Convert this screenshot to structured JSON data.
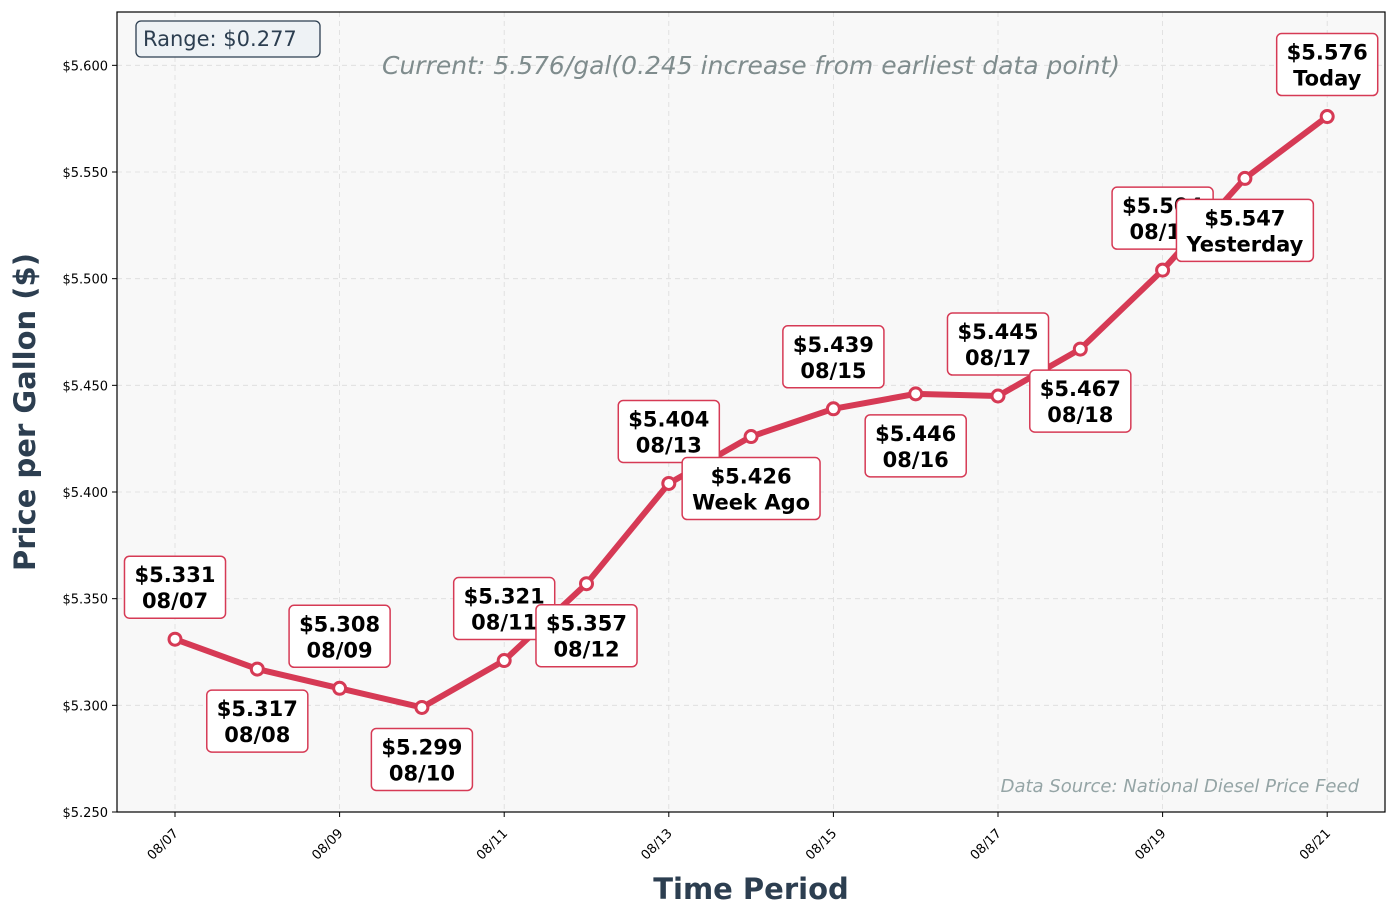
{
  "chart_data": {
    "type": "line",
    "xlabel": "Time Period",
    "ylabel": "Price per Gallon ($)",
    "subtitle": "Current: 5.576/gal(0.245 increase from earliest data point)",
    "range_label": "Range: $0.277",
    "source_label": "Data Source: National Diesel Price Feed",
    "ylim": [
      5.25,
      5.625
    ],
    "yticks": [
      "$5.250",
      "$5.300",
      "$5.350",
      "$5.400",
      "$5.450",
      "$5.500",
      "$5.550",
      "$5.600"
    ],
    "xticks": [
      "08/07",
      "08/09",
      "08/11",
      "08/13",
      "08/15",
      "08/17",
      "08/19",
      "08/21"
    ],
    "grid": true,
    "line_color": "#d63a55",
    "x": [
      "08/07",
      "08/08",
      "08/09",
      "08/10",
      "08/11",
      "08/12",
      "08/13",
      "08/14",
      "08/15",
      "08/16",
      "08/17",
      "08/18",
      "08/19",
      "08/20",
      "08/21"
    ],
    "values": [
      5.331,
      5.317,
      5.308,
      5.299,
      5.321,
      5.357,
      5.404,
      5.426,
      5.439,
      5.446,
      5.445,
      5.467,
      5.504,
      5.547,
      5.576
    ],
    "annotations": [
      {
        "price": "$5.331",
        "label": "08/07",
        "position": "above"
      },
      {
        "price": "$5.317",
        "label": "08/08",
        "position": "below"
      },
      {
        "price": "$5.308",
        "label": "08/09",
        "position": "above"
      },
      {
        "price": "$5.299",
        "label": "08/10",
        "position": "below"
      },
      {
        "price": "$5.321",
        "label": "08/11",
        "position": "above"
      },
      {
        "price": "$5.357",
        "label": "08/12",
        "position": "below"
      },
      {
        "price": "$5.404",
        "label": "08/13",
        "position": "above"
      },
      {
        "price": "$5.426",
        "label": "Week Ago",
        "position": "below"
      },
      {
        "price": "$5.439",
        "label": "08/15",
        "position": "above"
      },
      {
        "price": "$5.446",
        "label": "08/16",
        "position": "below"
      },
      {
        "price": "$5.445",
        "label": "08/17",
        "position": "above"
      },
      {
        "price": "$5.467",
        "label": "08/18",
        "position": "below"
      },
      {
        "price": "$5.504",
        "label": "08/19",
        "position": "above"
      },
      {
        "price": "$5.547",
        "label": "Yesterday",
        "position": "below"
      },
      {
        "price": "$5.576",
        "label": "Today",
        "position": "above"
      }
    ]
  }
}
